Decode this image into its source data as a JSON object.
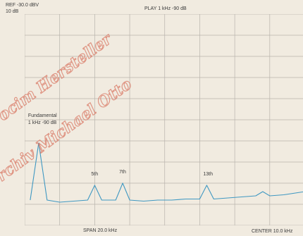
{
  "header": {
    "ref": "REF -30.0 dBV",
    "scale": "10 dB",
    "play": "PLAY 1 kHz -90 dB"
  },
  "footer": {
    "span": "SPAN 20.0 kHz",
    "center": "CENTER 10.0 kHz"
  },
  "watermark": {
    "line1": "ocim Hersteller",
    "line2": "rchiv Michael Otto"
  },
  "colors": {
    "trace": "#3f98c2",
    "grid": "#b8b3ac",
    "label": "#3a3a3a",
    "watermark": "#d8735f"
  },
  "chart_data": {
    "type": "line",
    "title": "PLAY 1 kHz -90 dB",
    "xlabel": "",
    "ylabel": "",
    "center_khz": 10.0,
    "span_khz": 20.0,
    "xlim": [
      0,
      20
    ],
    "ref_dbv": -30,
    "db_per_div": 10,
    "ylim": [
      -130,
      -30
    ],
    "grid": true,
    "series": [
      {
        "x": [
          0.4,
          1.0,
          1.6,
          2.5,
          3.5,
          4.5,
          5.0,
          5.5,
          6.5,
          7.0,
          7.5,
          8.5,
          9.5,
          10.5,
          11.5,
          12.5,
          13.0,
          13.5,
          14.5,
          15.5,
          16.5,
          17.0,
          17.5,
          18.5,
          19.5,
          20.0
        ],
        "y": [
          -118,
          -91,
          -118,
          -119,
          -118.5,
          -118,
          -111,
          -118,
          -118,
          -110,
          -118,
          -118.5,
          -118,
          -118,
          -117.5,
          -117.5,
          -111,
          -117.5,
          -117,
          -116.5,
          -116,
          -114,
          -116,
          -115.5,
          -114.5,
          -114
        ]
      }
    ],
    "annotations": [
      {
        "text": "Fundamental",
        "x": 1.0,
        "y": -91
      },
      {
        "text": "1 kHz -90 dB",
        "x": 1.0,
        "y": -91
      },
      {
        "text": "5th",
        "x": 5.0,
        "y": -111
      },
      {
        "text": "7th",
        "x": 7.0,
        "y": -110
      },
      {
        "text": "13th",
        "x": 13.0,
        "y": -111
      }
    ]
  }
}
